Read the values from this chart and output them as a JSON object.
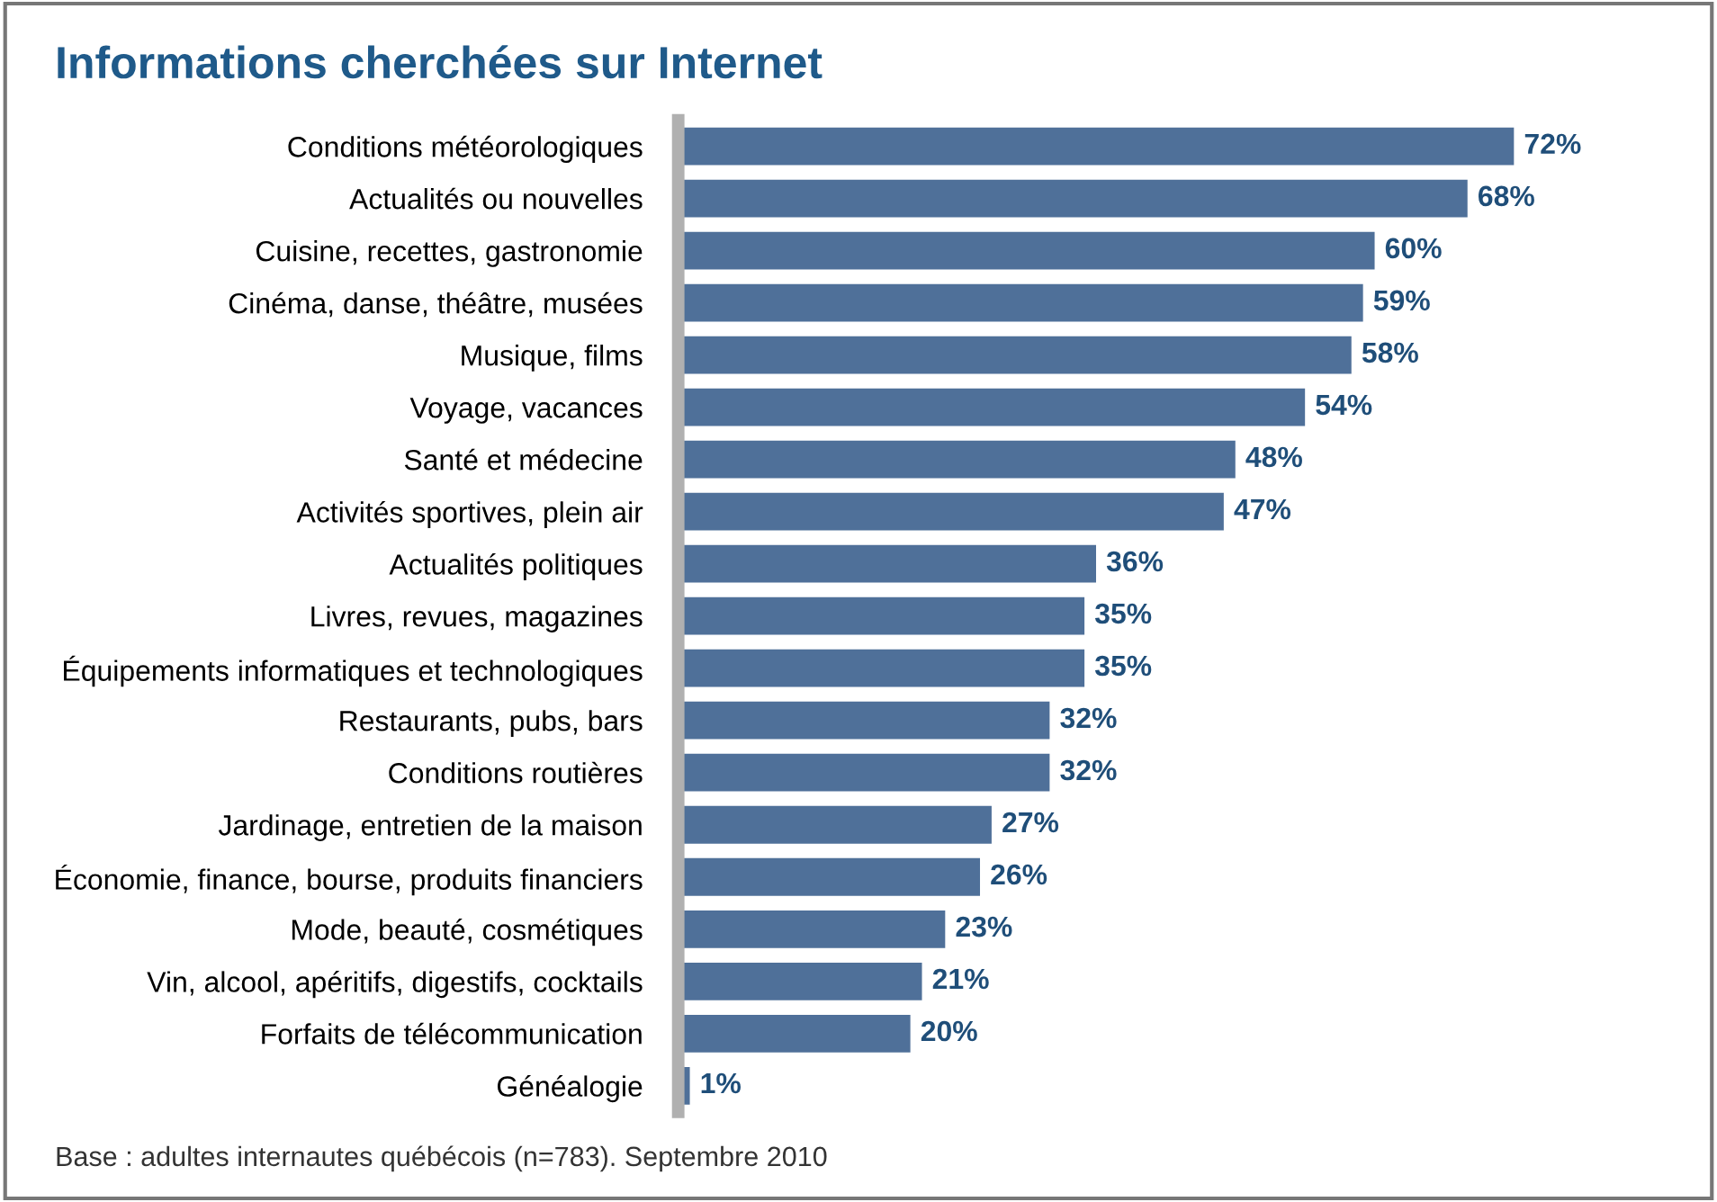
{
  "chart_data": {
    "type": "bar",
    "orientation": "horizontal",
    "title": "Informations cherchées sur Internet",
    "categories": [
      "Conditions météorologiques",
      "Actualités ou nouvelles",
      "Cuisine, recettes, gastronomie",
      "Cinéma, danse, théâtre, musées",
      "Musique, films",
      "Voyage, vacances",
      "Santé et médecine",
      "Activités sportives, plein air",
      "Actualités politiques",
      "Livres, revues, magazines",
      "Équipements informatiques et technologiques",
      "Restaurants, pubs, bars",
      "Conditions routières",
      "Jardinage, entretien de la maison",
      "Économie, finance, bourse, produits financiers",
      "Mode, beauté, cosmétiques",
      "Vin, alcool, apéritifs, digestifs, cocktails",
      "Forfaits de télécommunication",
      "Généalogie"
    ],
    "values": [
      72,
      68,
      60,
      59,
      58,
      54,
      48,
      47,
      36,
      35,
      35,
      32,
      32,
      27,
      26,
      23,
      21,
      20,
      1
    ],
    "value_labels": [
      "72%",
      "68%",
      "60%",
      "59%",
      "58%",
      "54%",
      "48%",
      "47%",
      "36%",
      "35%",
      "35%",
      "32%",
      "32%",
      "27%",
      "26%",
      "23%",
      "21%",
      "20%",
      "1%"
    ],
    "color": "#4f7099",
    "annotations": [
      "Base : adultes internautes québécois (n=783). Septembre 2010"
    ]
  }
}
